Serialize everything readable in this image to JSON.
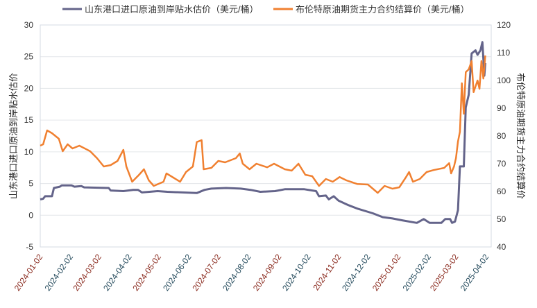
{
  "chart_data": {
    "type": "line",
    "title": "",
    "legend_position": "top-center",
    "grid": true,
    "series": [
      {
        "name": "山东港口进口原油到岸贴水估价（美元/桶）",
        "axis": "left",
        "color": "#64648a",
        "points": [
          [
            "2024-01-02",
            2.5
          ],
          [
            "2024-01-05",
            2.6
          ],
          [
            "2024-01-07",
            3.0
          ],
          [
            "2024-01-14",
            3.0
          ],
          [
            "2024-01-16",
            4.3
          ],
          [
            "2024-01-22",
            4.5
          ],
          [
            "2024-01-24",
            4.7
          ],
          [
            "2024-02-03",
            4.7
          ],
          [
            "2024-02-06",
            4.5
          ],
          [
            "2024-02-13",
            4.6
          ],
          [
            "2024-02-16",
            4.4
          ],
          [
            "2024-03-12",
            4.3
          ],
          [
            "2024-03-14",
            3.9
          ],
          [
            "2024-03-27",
            3.8
          ],
          [
            "2024-04-06",
            4.0
          ],
          [
            "2024-04-11",
            4.0
          ],
          [
            "2024-04-15",
            3.6
          ],
          [
            "2024-05-01",
            3.8
          ],
          [
            "2024-05-11",
            3.7
          ],
          [
            "2024-06-10",
            3.5
          ],
          [
            "2024-06-18",
            4.0
          ],
          [
            "2024-06-25",
            4.2
          ],
          [
            "2024-07-10",
            4.3
          ],
          [
            "2024-07-25",
            4.2
          ],
          [
            "2024-08-04",
            4.0
          ],
          [
            "2024-08-14",
            3.7
          ],
          [
            "2024-08-29",
            3.8
          ],
          [
            "2024-09-08",
            4.1
          ],
          [
            "2024-09-28",
            4.1
          ],
          [
            "2024-10-10",
            3.8
          ],
          [
            "2024-10-13",
            3.0
          ],
          [
            "2024-10-20",
            3.1
          ],
          [
            "2024-10-23",
            2.5
          ],
          [
            "2024-10-28",
            3.0
          ],
          [
            "2024-11-02",
            2.3
          ],
          [
            "2024-11-12",
            1.6
          ],
          [
            "2024-11-22",
            1.0
          ],
          [
            "2024-12-07",
            0.3
          ],
          [
            "2024-12-17",
            -0.3
          ],
          [
            "2024-12-27",
            -0.5
          ],
          [
            "2025-01-06",
            -0.8
          ],
          [
            "2025-01-21",
            -1.2
          ],
          [
            "2025-01-28",
            -0.6
          ],
          [
            "2025-02-03",
            -1.2
          ],
          [
            "2025-02-15",
            -1.2
          ],
          [
            "2025-02-19",
            -0.6
          ],
          [
            "2025-02-24",
            -0.6
          ],
          [
            "2025-02-26",
            -1.2
          ],
          [
            "2025-03-01",
            -1.0
          ],
          [
            "2025-03-04",
            0.8
          ],
          [
            "2025-03-06",
            7.7
          ],
          [
            "2025-03-10",
            7.7
          ],
          [
            "2025-03-12",
            17
          ],
          [
            "2025-03-15",
            19
          ],
          [
            "2025-03-18",
            25.5
          ],
          [
            "2025-03-22",
            26
          ],
          [
            "2025-03-24",
            25.3
          ],
          [
            "2025-03-27",
            26
          ],
          [
            "2025-03-29",
            27.3
          ],
          [
            "2025-03-31",
            22
          ],
          [
            "2025-04-01",
            24
          ]
        ]
      },
      {
        "name": "布伦特原油期货主力合约结算价（美元/桶）",
        "axis": "right",
        "color": "#f08030",
        "points": [
          [
            "2024-01-02",
            76.5
          ],
          [
            "2024-01-05",
            77
          ],
          [
            "2024-01-09",
            82
          ],
          [
            "2024-01-14",
            81
          ],
          [
            "2024-01-21",
            79
          ],
          [
            "2024-01-25",
            74.5
          ],
          [
            "2024-01-30",
            77
          ],
          [
            "2024-02-04",
            75.5
          ],
          [
            "2024-02-11",
            76.5
          ],
          [
            "2024-02-22",
            74.5
          ],
          [
            "2024-02-29",
            72
          ],
          [
            "2024-03-07",
            69
          ],
          [
            "2024-03-14",
            69.5
          ],
          [
            "2024-03-21",
            71
          ],
          [
            "2024-03-27",
            75
          ],
          [
            "2024-03-30",
            69
          ],
          [
            "2024-04-05",
            63.5
          ],
          [
            "2024-04-12",
            66
          ],
          [
            "2024-04-17",
            68
          ],
          [
            "2024-04-22",
            64
          ],
          [
            "2024-04-27",
            62
          ],
          [
            "2024-05-07",
            63.5
          ],
          [
            "2024-05-10",
            66.5
          ],
          [
            "2024-05-17",
            65
          ],
          [
            "2024-05-24",
            63.5
          ],
          [
            "2024-05-30",
            67
          ],
          [
            "2024-06-06",
            69
          ],
          [
            "2024-06-10",
            77.8
          ],
          [
            "2024-06-15",
            78.5
          ],
          [
            "2024-06-17",
            68
          ],
          [
            "2024-06-25",
            68.5
          ],
          [
            "2024-07-02",
            71
          ],
          [
            "2024-07-09",
            70.5
          ],
          [
            "2024-07-20",
            72
          ],
          [
            "2024-07-24",
            73.7
          ],
          [
            "2024-07-27",
            70
          ],
          [
            "2024-08-03",
            68
          ],
          [
            "2024-08-10",
            70
          ],
          [
            "2024-08-21",
            68.7
          ],
          [
            "2024-08-28",
            70
          ],
          [
            "2024-09-08",
            68
          ],
          [
            "2024-09-15",
            67.5
          ],
          [
            "2024-09-22",
            70
          ],
          [
            "2024-09-29",
            66
          ],
          [
            "2024-10-06",
            65.5
          ],
          [
            "2024-10-13",
            62
          ],
          [
            "2024-10-20",
            64.5
          ],
          [
            "2024-10-27",
            63.5
          ],
          [
            "2024-11-03",
            65.2
          ],
          [
            "2024-11-10",
            64
          ],
          [
            "2024-11-21",
            62.7
          ],
          [
            "2024-12-02",
            62.5
          ],
          [
            "2024-12-12",
            59.5
          ],
          [
            "2024-12-19",
            62
          ],
          [
            "2024-12-27",
            61
          ],
          [
            "2025-01-03",
            61.5
          ],
          [
            "2025-01-10",
            65.2
          ],
          [
            "2025-01-13",
            67
          ],
          [
            "2025-01-17",
            63.5
          ],
          [
            "2025-01-24",
            64.5
          ],
          [
            "2025-01-31",
            67
          ],
          [
            "2025-02-07",
            67.7
          ],
          [
            "2025-02-18",
            68.5
          ],
          [
            "2025-02-23",
            70.2
          ],
          [
            "2025-02-25",
            66.5
          ],
          [
            "2025-02-28",
            69
          ],
          [
            "2025-03-02",
            72
          ],
          [
            "2025-03-04",
            78
          ],
          [
            "2025-03-06",
            81.5
          ],
          [
            "2025-03-08",
            99
          ],
          [
            "2025-03-10",
            88
          ],
          [
            "2025-03-12",
            103
          ],
          [
            "2025-03-15",
            104
          ],
          [
            "2025-03-18",
            107
          ],
          [
            "2025-03-20",
            95.8
          ],
          [
            "2025-03-24",
            100
          ],
          [
            "2025-03-26",
            97
          ],
          [
            "2025-03-28",
            107
          ],
          [
            "2025-03-30",
            100.7
          ],
          [
            "2025-04-01",
            109
          ]
        ]
      }
    ],
    "x_ticks": [
      "2024-01-02",
      "2024-02-02",
      "2024-03-02",
      "2024-04-02",
      "2024-05-02",
      "2024-06-02",
      "2024-07-02",
      "2024-08-02",
      "2024-09-02",
      "2024-10-02",
      "2024-11-02",
      "2024-12-02",
      "2025-01-02",
      "2025-02-02",
      "2025-03-02",
      "2025-04-02"
    ],
    "xlim": [
      "2024-01-02",
      "2025-04-07"
    ],
    "y_left": {
      "label": "山东港口进口原油到岸贴水估价",
      "ylim": [
        -5,
        30
      ],
      "ticks": [
        -5,
        0,
        5,
        10,
        15,
        20,
        25,
        30
      ]
    },
    "y_right": {
      "label": "布伦特原油期货主力合约结算价",
      "ylim": [
        40,
        120
      ],
      "ticks": [
        40,
        50,
        60,
        70,
        80,
        90,
        100,
        110,
        120
      ]
    },
    "x_tick_colors": [
      "#8a2a1e",
      "#244a5c"
    ]
  }
}
